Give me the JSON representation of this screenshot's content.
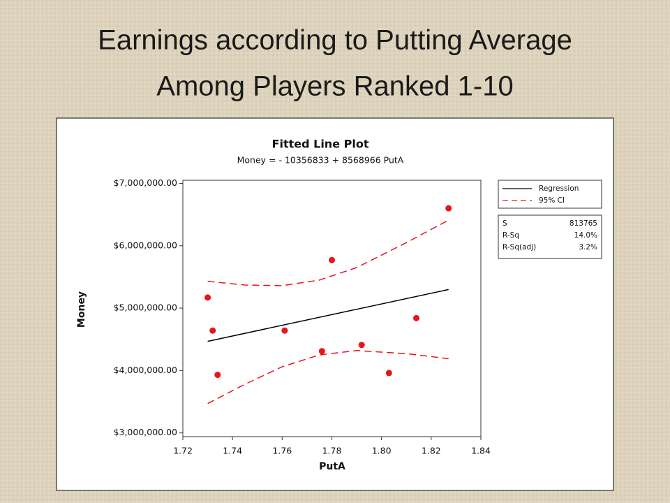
{
  "slide": {
    "title_lines": [
      "Earnings according to Putting Average",
      "Among Players Ranked  1-10"
    ]
  },
  "chart_data": {
    "type": "scatter",
    "title": "Fitted Line Plot",
    "subtitle": "Money = - 10356833 + 8568966 PutA",
    "x_label": "PutA",
    "y_label": "Money",
    "xlim": [
      1.72,
      1.84
    ],
    "ylim": [
      2940000,
      7050000
    ],
    "xticks": [
      1.72,
      1.74,
      1.76,
      1.78,
      {
        "value": 1.8,
        "label": "1.80"
      },
      1.82,
      1.84
    ],
    "yticks": [
      {
        "value": 3000000,
        "label": "$3,000,000.00"
      },
      {
        "value": 4000000,
        "label": "$4,000,000.00"
      },
      {
        "value": 5000000,
        "label": "$5,000,000.00"
      },
      {
        "value": 6000000,
        "label": "$6,000,000.00"
      },
      {
        "value": 7000000,
        "label": "$7,000,000.00"
      }
    ],
    "points": {
      "color": "#e8141b",
      "x": [
        1.73,
        1.732,
        1.734,
        1.761,
        1.776,
        1.78,
        1.792,
        1.803,
        1.814,
        1.827
      ],
      "values": [
        5170000,
        4640000,
        3930000,
        4640000,
        4310000,
        5770000,
        4410000,
        3960000,
        4840000,
        6600000
      ]
    },
    "series": [
      {
        "name": "Regression",
        "color": "#000000",
        "dash": false,
        "x": [
          1.73,
          1.827
        ],
        "values": [
          4467478,
          5298668
        ]
      },
      {
        "name": "95% CI",
        "color": "#e8141b",
        "dash": true,
        "x": [
          1.73,
          1.745,
          1.76,
          1.775,
          1.79,
          1.81,
          1.827
        ],
        "upper": [
          5430000,
          5370000,
          5360000,
          5450000,
          5650000,
          6050000,
          6410000
        ],
        "lower": [
          3470000,
          3780000,
          4060000,
          4250000,
          4320000,
          4270000,
          4190000
        ]
      }
    ],
    "stats": [
      {
        "label": "S",
        "value": "813765"
      },
      {
        "label": "R-Sq",
        "value": "14.0%"
      },
      {
        "label": "R-Sq(adj)",
        "value": "3.2%"
      }
    ]
  }
}
